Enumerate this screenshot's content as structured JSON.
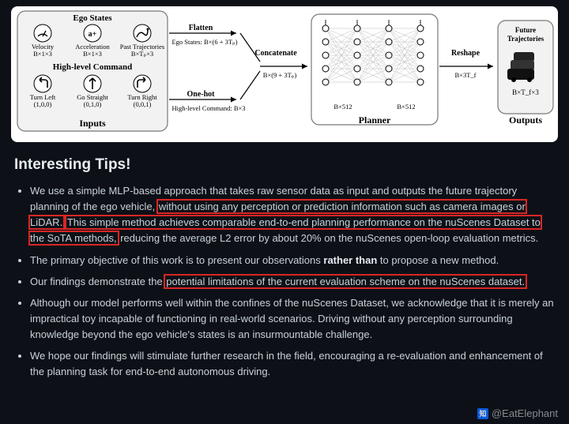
{
  "diagram": {
    "background": "#ffffff",
    "stroke": "#000000",
    "box_fill": "#f2f2f2",
    "box_border": "#777777",
    "box_radius": 10,
    "font_family": "Times New Roman",
    "inputs": {
      "title": "Inputs",
      "ego_states": {
        "title": "Ego States",
        "items": [
          {
            "name": "Velocity",
            "dim": "B×1×3",
            "icon": "gauge"
          },
          {
            "name": "Acceleration",
            "dim": "B×1×3",
            "icon": "accel"
          },
          {
            "name": "Past Trajectories",
            "dim": "B×Tₚ×3",
            "icon": "path"
          }
        ]
      },
      "high_level_command": {
        "title": "High-level Command",
        "items": [
          {
            "name": "Turn Left",
            "vec": "(1,0,0)",
            "icon": "left"
          },
          {
            "name": "Go Straight",
            "vec": "(0,1,0)",
            "icon": "up"
          },
          {
            "name": "Turn Right",
            "vec": "(0,0,1)",
            "icon": "right"
          }
        ]
      }
    },
    "ops": {
      "flatten": {
        "label": "Flatten",
        "out": "Ego States: B×(6 + 3Tₚ)"
      },
      "onehot": {
        "label": "One-hot",
        "out": "High-level Command: B×3"
      },
      "concat": {
        "label": "Concatenate",
        "out": "B×(9 + 3Tₚ)"
      },
      "reshape": {
        "label": "Reshape",
        "out": "B×3T_f"
      }
    },
    "planner": {
      "title": "Planner",
      "layers": [
        5,
        5,
        5,
        5
      ],
      "layer_dims": [
        "B×512",
        "B×512"
      ],
      "node_radius": 4,
      "node_stroke": "#000000",
      "node_fill": "#ffffff",
      "edge_stroke": "#bbbbbb"
    },
    "outputs": {
      "title": "Outputs",
      "future_traj": {
        "label": "Future Trajectories",
        "dim": "B×T_f×3",
        "icon": "cars"
      }
    }
  },
  "tips": {
    "heading": "Interesting Tips!",
    "bullets": [
      {
        "pre": "We use a simple MLP-based approach that takes raw sensor data as input and outputs the future trajectory planning of the ego vehicle, ",
        "hl1": "without using any perception or prediction information such as camera images or LiDAR.",
        "mid": " ",
        "hl2": "This simple method achieves comparable end-to-end planning performance on the nuScenes Dataset to the SoTA methods,",
        "post": " reducing the average L2 error by about 20% on the nuScenes open-loop evaluation metrics."
      },
      {
        "pre": "The primary objective of this work is to present our observations ",
        "bold": "rather than",
        "post": " to propose a new method."
      },
      {
        "pre": "Our findings demonstrate the ",
        "hl1": "potential limitations of the current evaluation scheme on the nuScenes dataset."
      },
      {
        "pre": "Although our model performs well within the confines of the nuScenes Dataset, we acknowledge that it is merely an impractical toy incapable of functioning in real-world scenarios. Driving without any perception surrounding knowledge beyond the ego vehicle's states is an insurmountable challenge."
      },
      {
        "pre": "We hope our findings will stimulate further research in the field, encouraging a re-evaluation and enhancement of the planning task for end-to-end autonomous driving."
      }
    ]
  },
  "watermark": {
    "text": "@EatElephant",
    "icon_label": "知"
  }
}
